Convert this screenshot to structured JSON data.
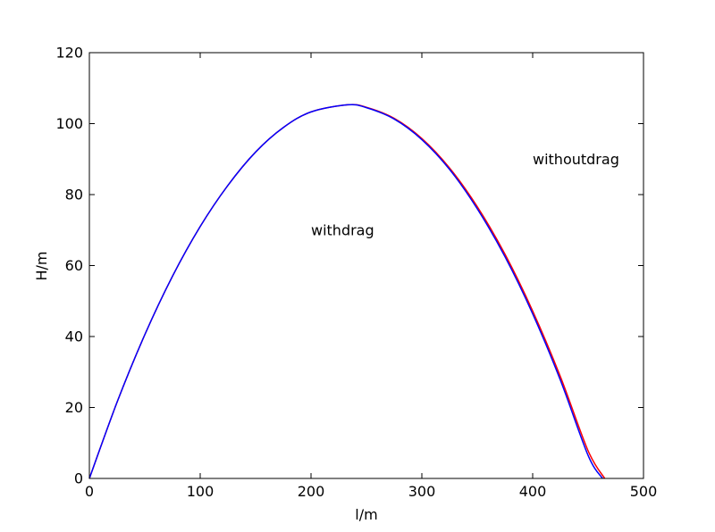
{
  "chart_data": {
    "type": "line",
    "title": "",
    "xlabel": "l/m",
    "ylabel": "H/m",
    "xlim": [
      0,
      500
    ],
    "ylim": [
      0,
      120
    ],
    "xticks": [
      0,
      100,
      200,
      300,
      400,
      500
    ],
    "yticks": [
      0,
      20,
      40,
      60,
      80,
      100,
      120
    ],
    "grid": false,
    "series": [
      {
        "color": "#ff0000",
        "x": [
          0,
          25,
          50,
          75,
          100,
          125,
          150,
          175,
          200,
          233,
          250,
          275,
          300,
          325,
          350,
          375,
          400,
          425,
          450,
          465
        ],
        "y": [
          0,
          21.5,
          40.5,
          57.0,
          71.0,
          82.6,
          92.0,
          98.9,
          103.3,
          105.3,
          104.6,
          101.5,
          95.8,
          87.5,
          76.6,
          63.2,
          47.2,
          28.7,
          7.8,
          0
        ]
      },
      {
        "color": "#0000ff",
        "x": [
          0,
          25,
          50,
          75,
          100,
          125,
          150,
          175,
          200,
          233,
          250,
          275,
          300,
          325,
          350,
          375,
          400,
          425,
          450,
          463
        ],
        "y": [
          0,
          21.5,
          40.5,
          57.0,
          71.0,
          82.6,
          92.0,
          98.9,
          103.3,
          105.3,
          104.5,
          101.3,
          95.5,
          87.1,
          76.0,
          62.5,
          46.4,
          27.7,
          6.5,
          0
        ]
      }
    ],
    "annotations": [
      {
        "text": "withoutdrag",
        "x": 400,
        "y": 90
      },
      {
        "text": "withdrag",
        "x": 200,
        "y": 70
      }
    ]
  }
}
